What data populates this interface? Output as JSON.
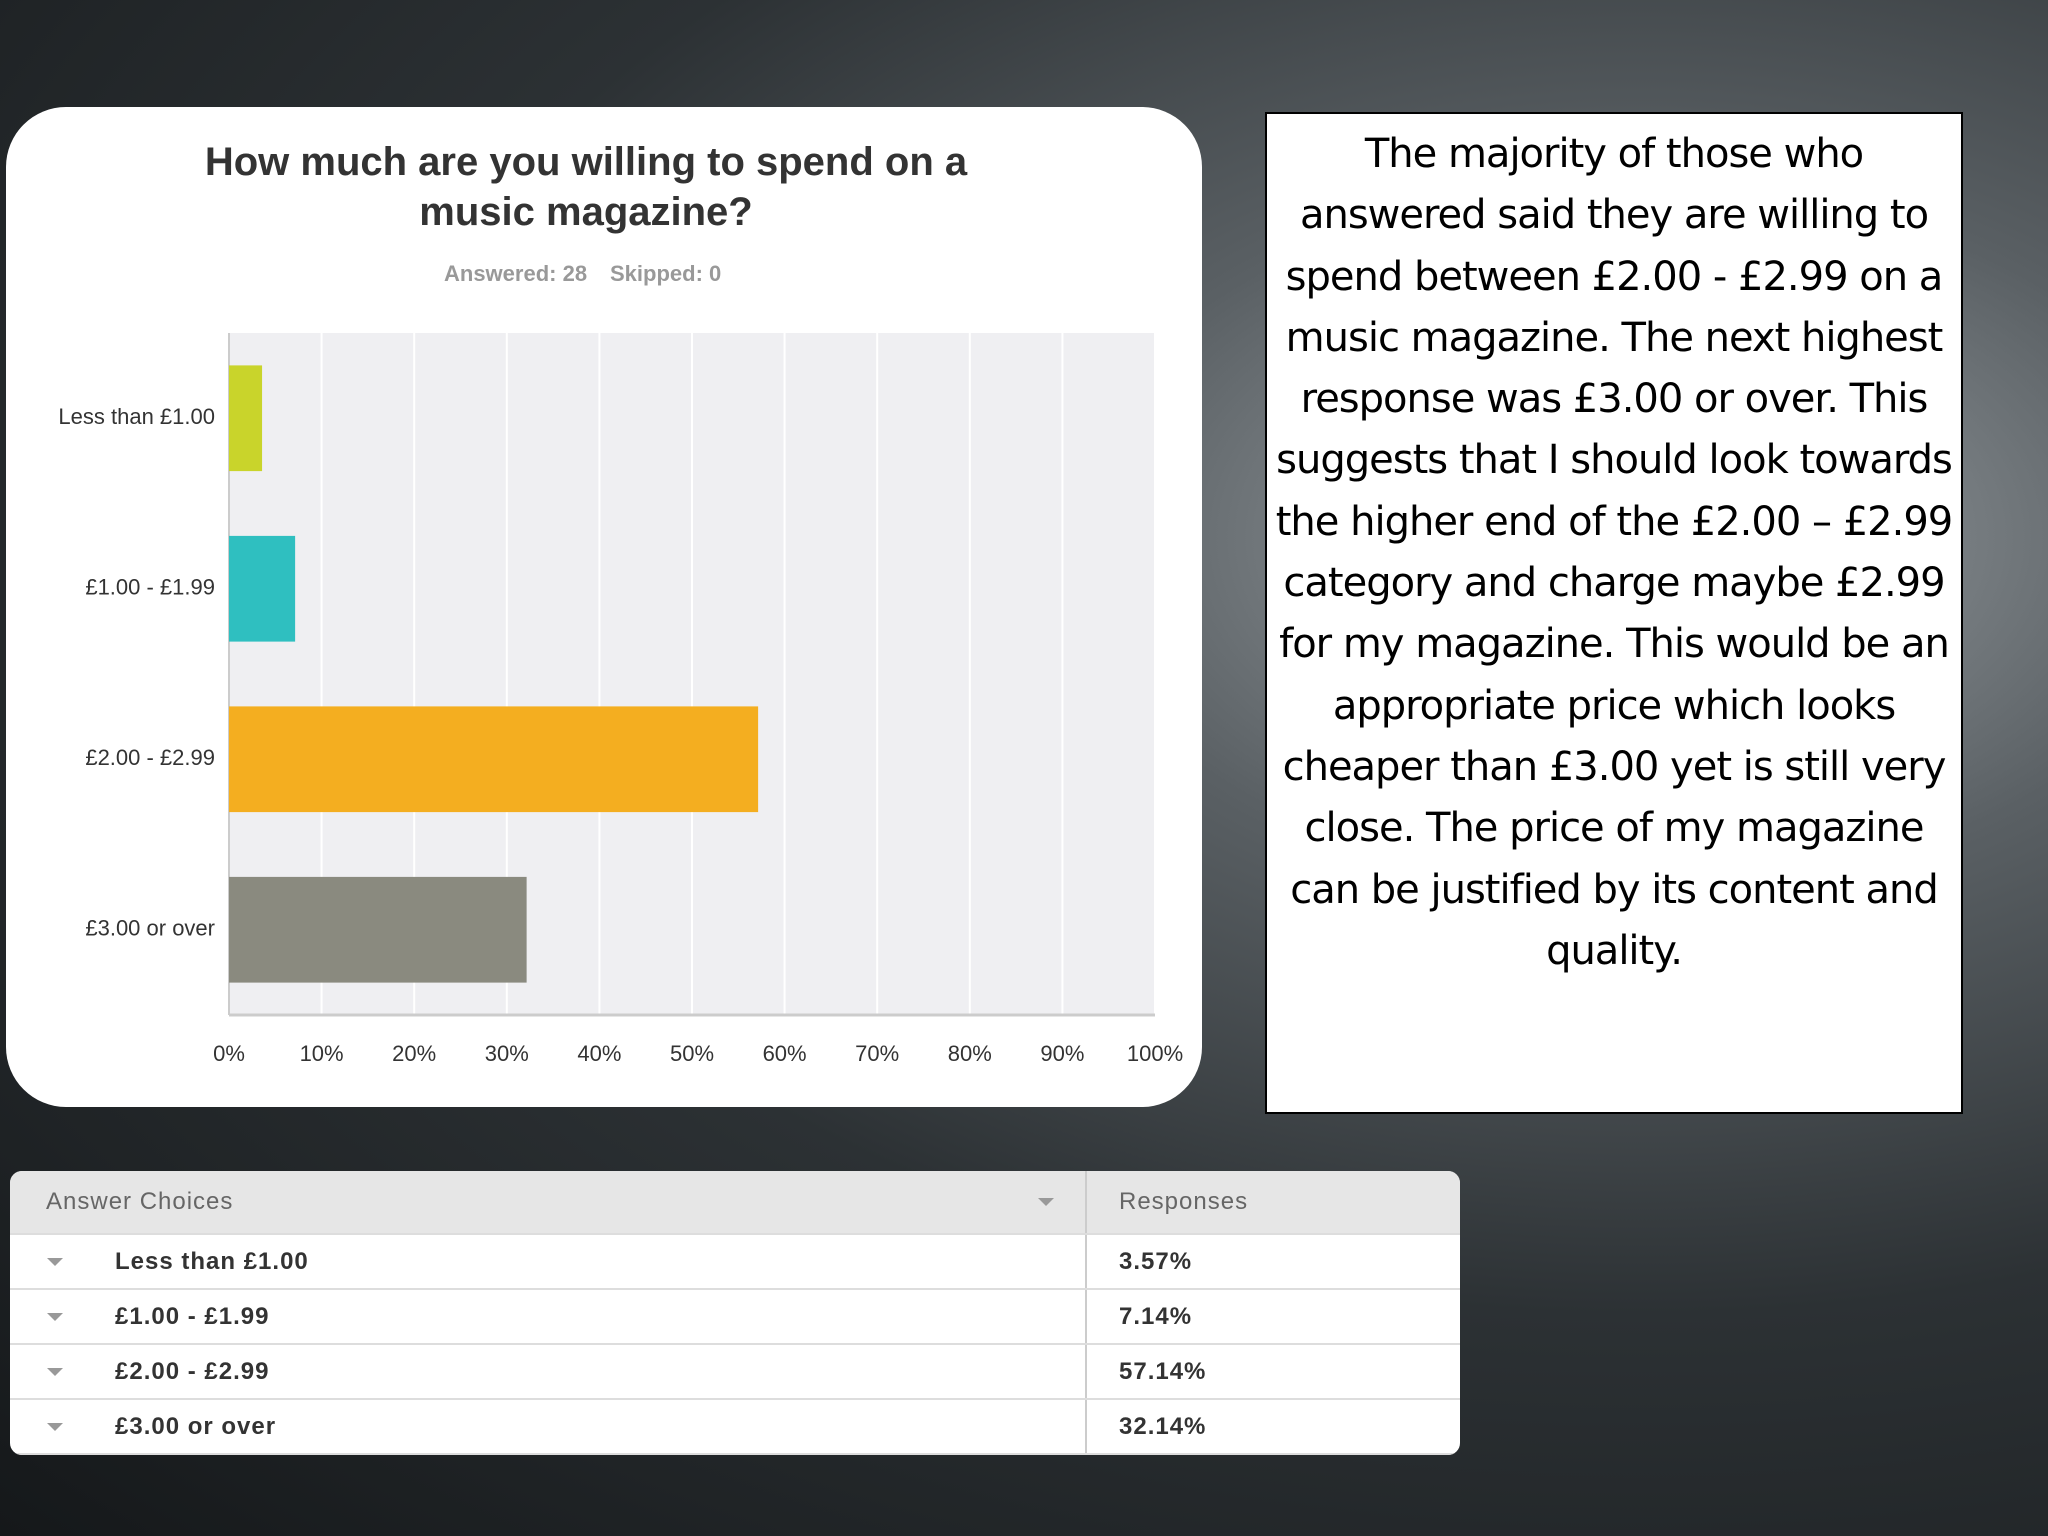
{
  "chart_data": {
    "type": "bar",
    "orientation": "horizontal",
    "title": "How much are you willing to spend on a music magazine?",
    "annotations": [
      "Answered: 28",
      "Skipped: 0"
    ],
    "categories": [
      "Less than £1.00",
      "£1.00 -  £1.99",
      "£2.00 - £2.99",
      "£3.00 or over"
    ],
    "values": [
      3.57,
      7.14,
      57.14,
      32.14
    ],
    "colors": [
      "#c9d42b",
      "#2fbfc0",
      "#f4ae20",
      "#8a8a7f"
    ],
    "xlim": [
      0,
      100
    ],
    "xticks": [
      {
        "value": 0,
        "label": "0%"
      },
      {
        "value": 10,
        "label": "10%"
      },
      {
        "value": 20,
        "label": "20%"
      },
      {
        "value": 30,
        "label": "30%"
      },
      {
        "value": 40,
        "label": "40%"
      },
      {
        "value": 50,
        "label": "50%"
      },
      {
        "value": 60,
        "label": "60%"
      },
      {
        "value": 70,
        "label": "70%"
      },
      {
        "value": 80,
        "label": "80%"
      },
      {
        "value": 90,
        "label": "90%"
      },
      {
        "value": 100,
        "label": "100%"
      }
    ],
    "grid": true
  },
  "text_box": {
    "text": "The majority of those who answered said they are willing to spend between £2.00 - £2.99 on a music magazine. The next highest response was £3.00 or over. This suggests that I should look towards the higher end of the £2.00 – £2.99 category and charge maybe £2.99 for my magazine. This would be an appropriate price which looks cheaper than £3.00 yet is still very close. The price of my magazine can be justified by its content and quality."
  },
  "table": {
    "headers": [
      "Answer Choices",
      "Responses"
    ],
    "rows": [
      [
        "Less than £1.00",
        "3.57%"
      ],
      [
        "£1.00 -  £1.99",
        "7.14%"
      ],
      [
        "£2.00 - £2.99",
        "57.14%"
      ],
      [
        "£3.00 or over",
        "32.14%"
      ]
    ]
  }
}
